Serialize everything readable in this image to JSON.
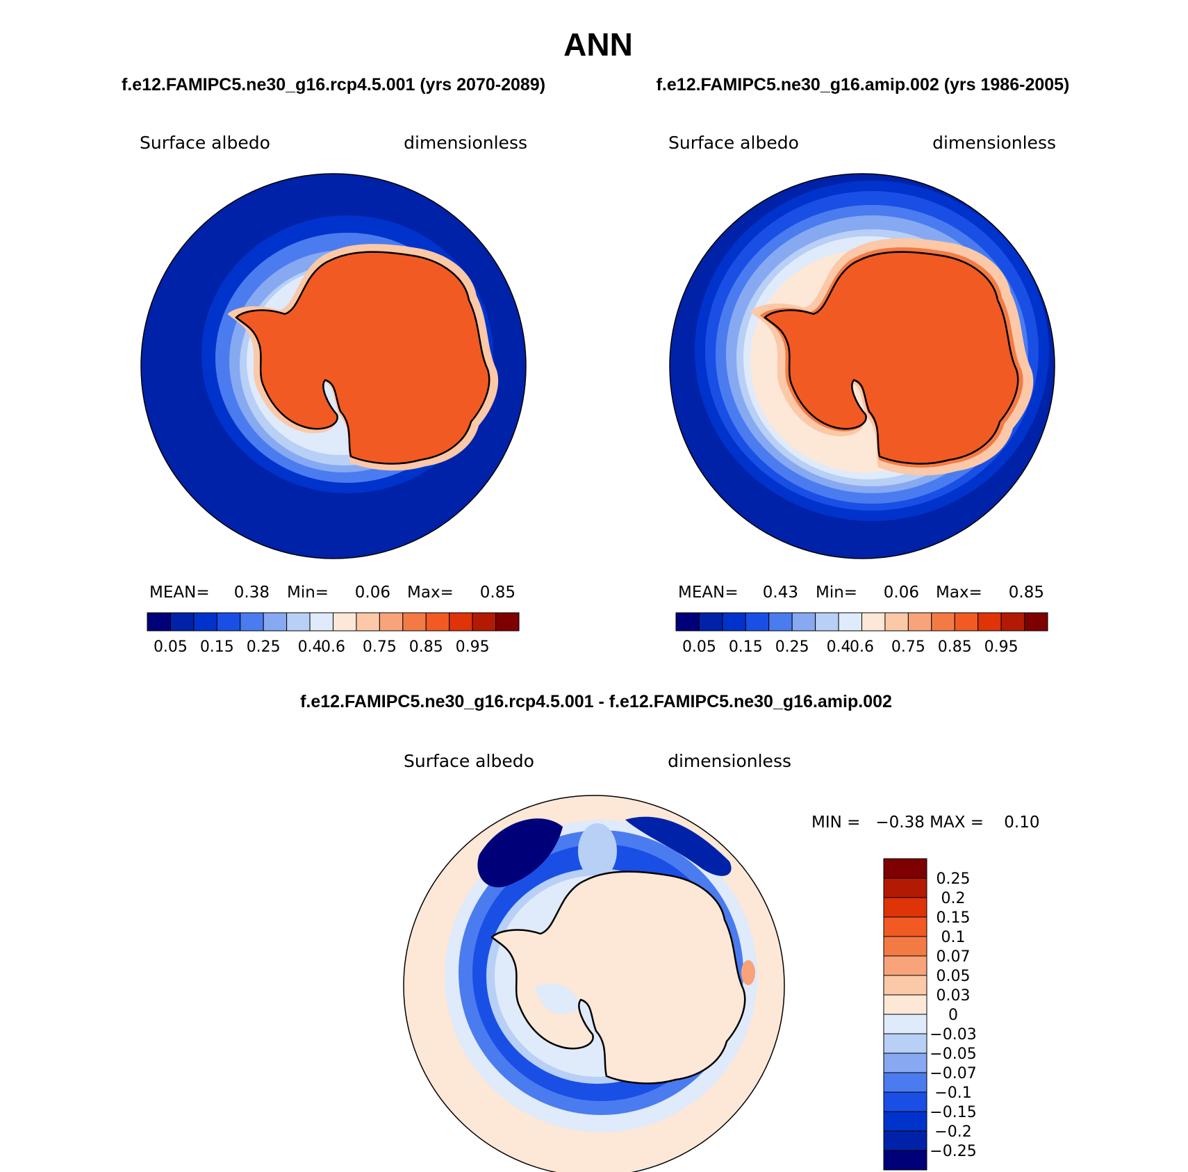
{
  "title": "ANN",
  "panels": {
    "left": {
      "header": "f.e12.FAMIPC5.ne30_g16.rcp4.5.001 (yrs 2070-2089)",
      "variable": "Surface albedo",
      "units": "dimensionless",
      "stats": {
        "mean_label": "MEAN=",
        "mean": "0.38",
        "min_label": "Min=",
        "min": "0.06",
        "max_label": "Max=",
        "max": "0.85"
      }
    },
    "right": {
      "header": "f.e12.FAMIPC5.ne30_g16.amip.002 (yrs 1986-2005)",
      "variable": "Surface albedo",
      "units": "dimensionless",
      "stats": {
        "mean_label": "MEAN=",
        "mean": "0.43",
        "min_label": "Min=",
        "min": "0.06",
        "max_label": "Max=",
        "max": "0.85"
      }
    },
    "diff": {
      "header": "f.e12.FAMIPC5.ne30_g16.rcp4.5.001 - f.e12.FAMIPC5.ne30_g16.amip.002",
      "variable": "Surface albedo",
      "units": "dimensionless",
      "minmax": "MIN =   −0.38 MAX =    0.10"
    }
  },
  "colorbar_main": {
    "colors": [
      "#000078",
      "#0022a8",
      "#0033cc",
      "#1a4fe6",
      "#4a7cf0",
      "#86a9f2",
      "#b8cff6",
      "#dfeafb",
      "#fde7d7",
      "#fbc8a8",
      "#f8a37a",
      "#f47a45",
      "#f15a22",
      "#df3308",
      "#b31a03",
      "#7e0000"
    ],
    "labels": [
      "0.05",
      "0.15",
      "0.25",
      "0.4",
      "0.6",
      "0.75",
      "0.85",
      "0.95"
    ]
  },
  "colorbar_diff": {
    "colors": [
      "#000078",
      "#0022a8",
      "#0033cc",
      "#1a4fe6",
      "#4a7cf0",
      "#86a9f2",
      "#b8cff6",
      "#dfeafb",
      "#fde7d7",
      "#fbc8a8",
      "#f8a37a",
      "#f47a45",
      "#f15a22",
      "#df3308",
      "#b31a03",
      "#7e0000"
    ],
    "labels": [
      "0.25",
      "0.2",
      "0.15",
      "0.1",
      "0.07",
      "0.05",
      "0.03",
      "0",
      "−0.03",
      "−0.05",
      "−0.07",
      "−0.1",
      "−0.15",
      "−0.2",
      "−0.25"
    ]
  }
}
